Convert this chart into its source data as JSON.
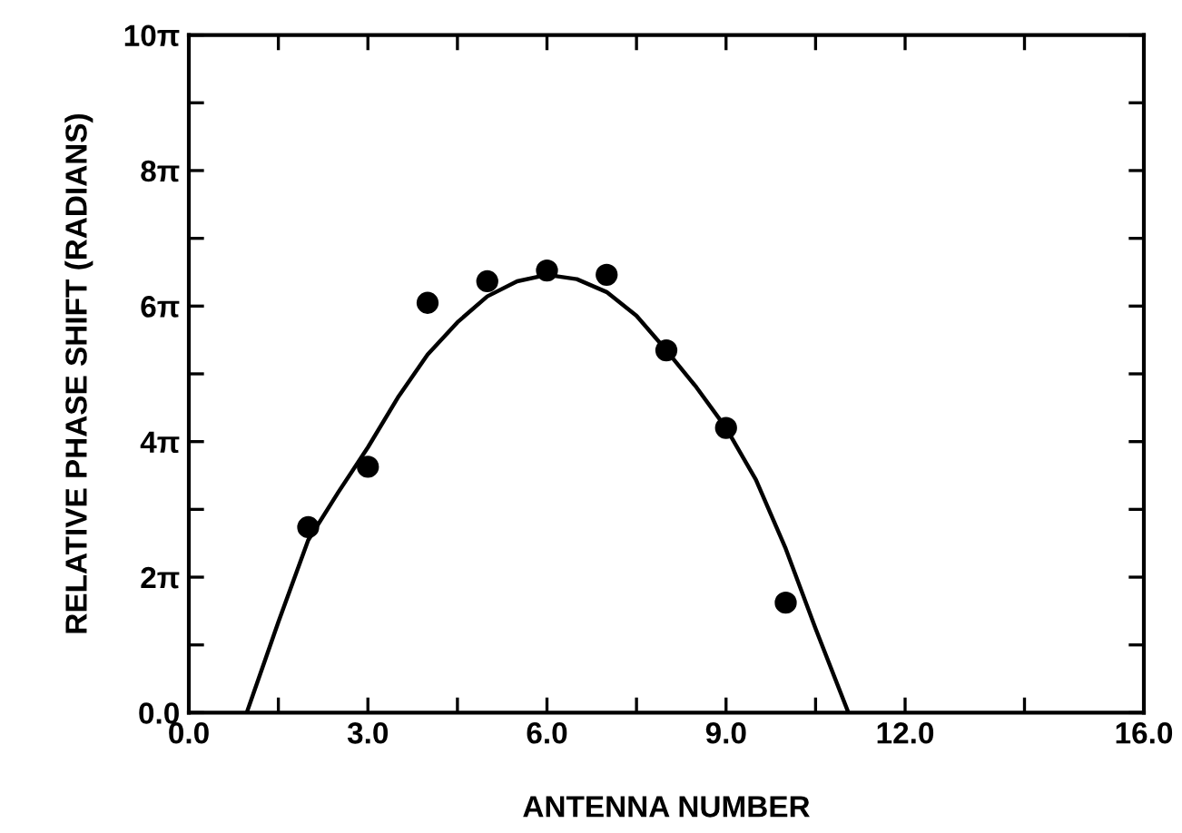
{
  "chart_data": {
    "type": "scatter",
    "xlabel": "ANTENNA NUMBER",
    "ylabel": "RELATIVE PHASE SHIFT (RADIANS)",
    "series": [
      {
        "type": "scatter",
        "color": "#000000",
        "marker": "circle",
        "x": [
          2,
          3,
          4,
          5,
          6,
          7,
          8,
          9,
          10
        ],
        "values": [
          8.6,
          11.4,
          19.0,
          20.0,
          20.5,
          20.3,
          16.8,
          13.2,
          5.1
        ]
      },
      {
        "type": "line",
        "color": "#000000",
        "marker": "none",
        "line_style": "solid",
        "x": [
          0.97,
          1.5,
          2,
          2.5,
          3,
          3.5,
          4,
          4.5,
          5,
          5.5,
          6,
          6.5,
          7,
          7.5,
          8,
          8.5,
          9,
          9.5,
          10,
          10.5,
          11.05
        ],
        "values": [
          0,
          4.2,
          8.0,
          10.2,
          12.3,
          14.6,
          16.6,
          18.1,
          19.3,
          20.0,
          20.3,
          20.1,
          19.5,
          18.4,
          16.8,
          15.1,
          13.2,
          10.8,
          7.6,
          3.9,
          0
        ]
      }
    ],
    "xlim": [
      0,
      16
    ],
    "ylim": [
      0,
      31.416
    ],
    "xticks": [
      {
        "value": 0,
        "label": "0.0"
      },
      {
        "value": 1.5,
        "label": null
      },
      {
        "value": 3,
        "label": "3.0"
      },
      {
        "value": 4.5,
        "label": null
      },
      {
        "value": 6,
        "label": "6.0"
      },
      {
        "value": 7.5,
        "label": null
      },
      {
        "value": 9,
        "label": "9.0"
      },
      {
        "value": 10.5,
        "label": null
      },
      {
        "value": 12,
        "label": "12.0"
      },
      {
        "value": 14,
        "label": null
      },
      {
        "value": 16,
        "label": "16.0"
      }
    ],
    "yticks": [
      {
        "value": 0,
        "label": "0.0"
      },
      {
        "value": 3.1416,
        "label": null
      },
      {
        "value": 6.2832,
        "label": "2π"
      },
      {
        "value": 9.4248,
        "label": null
      },
      {
        "value": 12.566,
        "label": "4π"
      },
      {
        "value": 15.708,
        "label": null
      },
      {
        "value": 18.85,
        "label": "6π"
      },
      {
        "value": 21.991,
        "label": null
      },
      {
        "value": 25.133,
        "label": "8π"
      },
      {
        "value": 28.274,
        "label": null
      },
      {
        "value": 31.416,
        "label": "10π"
      }
    ],
    "grid": false,
    "legend": false
  }
}
